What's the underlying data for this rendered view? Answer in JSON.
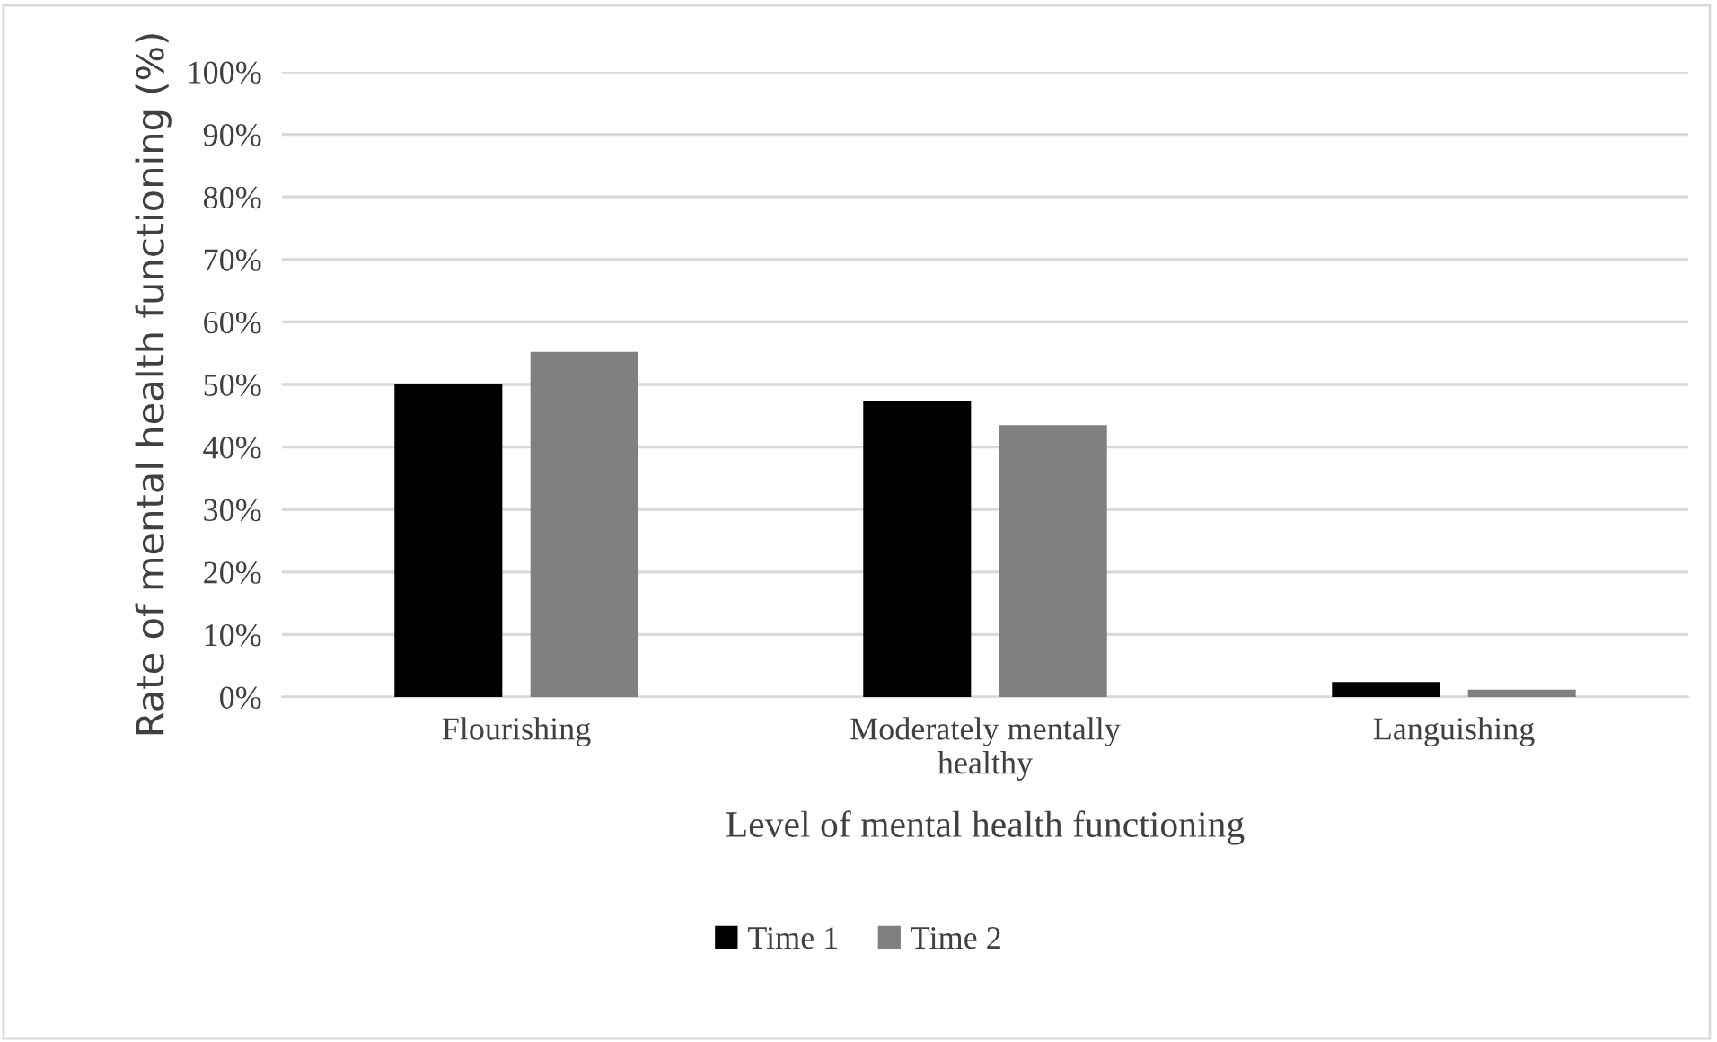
{
  "chart_data": {
    "type": "bar",
    "xlabel": "Level of mental health functioning",
    "ylabel": "Rate of mental health functioning (%)",
    "categories": [
      "Flourishing",
      "Moderately mentally\nhealthy",
      "Languishing"
    ],
    "series": [
      {
        "name": "Time 1",
        "color": "#000000",
        "values": [
          50,
          47.4,
          2.4
        ]
      },
      {
        "name": "Time 2",
        "color": "#808080",
        "values": [
          55.2,
          43.5,
          1.2
        ]
      }
    ],
    "ylim": [
      0,
      100
    ],
    "yticks": [
      {
        "value": 0,
        "label": "0%"
      },
      {
        "value": 10,
        "label": "10%"
      },
      {
        "value": 20,
        "label": "20%"
      },
      {
        "value": 30,
        "label": "30%"
      },
      {
        "value": 40,
        "label": "40%"
      },
      {
        "value": 50,
        "label": "50%"
      },
      {
        "value": 60,
        "label": "60%"
      },
      {
        "value": 70,
        "label": "70%"
      },
      {
        "value": 80,
        "label": "80%"
      },
      {
        "value": 90,
        "label": "90%"
      },
      {
        "value": 100,
        "label": "100%"
      }
    ],
    "grid": "y",
    "legend": "bottom"
  }
}
